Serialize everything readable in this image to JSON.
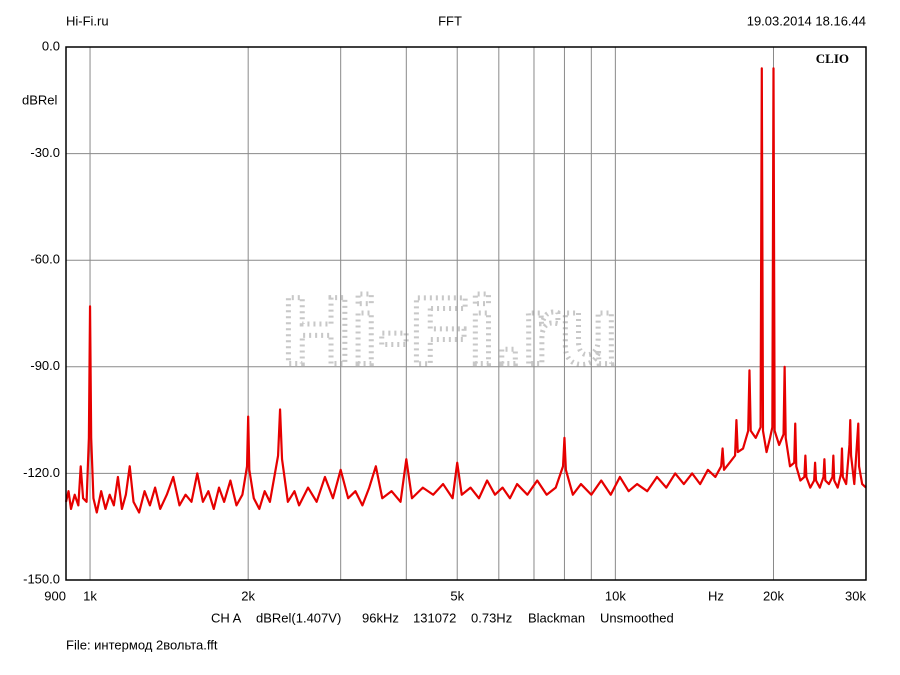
{
  "header": {
    "site": "Hi-Fi.ru",
    "mode": "FFT",
    "timestamp": "19.03.2014 18.16.44"
  },
  "chart_data": {
    "type": "line",
    "brand": "CLIO",
    "ylabel": "dBRel",
    "xlabel": "Hz",
    "log_x": true,
    "grid": true,
    "xlim": [
      900,
      30000
    ],
    "ylim": [
      -150,
      0
    ],
    "xticks": [
      900,
      {
        "value": 1000,
        "label": "1k"
      },
      {
        "value": 2000,
        "label": "2k"
      },
      {
        "value": 5000,
        "label": "5k"
      },
      {
        "value": 10000,
        "label": "10k"
      },
      {
        "value": 20000,
        "label": "20k"
      },
      {
        "value": 30000,
        "label": "30k"
      }
    ],
    "minor_xticks": [
      3000,
      4000,
      6000,
      7000,
      8000,
      9000
    ],
    "yticks": [
      {
        "value": 0,
        "label": "0.0"
      },
      {
        "value": -30,
        "label": "-30.0"
      },
      {
        "value": -60,
        "label": "-60.0"
      },
      {
        "value": -90,
        "label": "-90.0"
      },
      {
        "value": -120,
        "label": "-120.0"
      },
      {
        "value": -150,
        "label": "-150.0"
      }
    ],
    "series": [
      {
        "name": "CH A",
        "color": "#e60000",
        "x": [
          900,
          910,
          920,
          935,
          950,
          960,
          970,
          985,
          995,
          1000,
          1005,
          1015,
          1030,
          1050,
          1070,
          1090,
          1110,
          1130,
          1150,
          1170,
          1190,
          1210,
          1240,
          1270,
          1300,
          1330,
          1360,
          1400,
          1440,
          1480,
          1520,
          1560,
          1600,
          1640,
          1680,
          1720,
          1760,
          1800,
          1850,
          1900,
          1950,
          1990,
          2000,
          2010,
          2050,
          2100,
          2150,
          2200,
          2280,
          2300,
          2320,
          2380,
          2450,
          2500,
          2600,
          2700,
          2800,
          2900,
          3000,
          3100,
          3200,
          3300,
          3400,
          3500,
          3600,
          3750,
          3900,
          4000,
          4100,
          4300,
          4500,
          4700,
          4900,
          5000,
          5100,
          5300,
          5500,
          5700,
          5900,
          6100,
          6300,
          6500,
          6800,
          7100,
          7400,
          7700,
          7950,
          8000,
          8050,
          8300,
          8600,
          9000,
          9400,
          9800,
          10200,
          10600,
          11000,
          11500,
          12000,
          12500,
          13000,
          13500,
          14000,
          14500,
          15000,
          15500,
          15900,
          16000,
          16100,
          16500,
          16900,
          17000,
          17100,
          17500,
          17900,
          18000,
          18100,
          18500,
          18900,
          19000,
          19100,
          19400,
          19700,
          19900,
          20000,
          20100,
          20500,
          20900,
          21000,
          21100,
          21500,
          21900,
          22000,
          22100,
          22500,
          22900,
          23000,
          23100,
          23500,
          23900,
          24000,
          24100,
          24500,
          24900,
          25000,
          25100,
          25500,
          25900,
          26000,
          26100,
          26500,
          26900,
          27000,
          27100,
          27500,
          27900,
          28000,
          28100,
          28500,
          29000,
          29100,
          29500,
          30000
        ],
        "values": [
          -128,
          -125,
          -130,
          -126,
          -129,
          -118,
          -127,
          -128,
          -110,
          -73,
          -110,
          -127,
          -131,
          -125,
          -130,
          -126,
          -129,
          -121,
          -130,
          -126,
          -118,
          -128,
          -131,
          -125,
          -129,
          -124,
          -130,
          -126,
          -121,
          -129,
          -126,
          -128,
          -120,
          -128,
          -125,
          -130,
          -124,
          -128,
          -122,
          -129,
          -126,
          -118,
          -104,
          -119,
          -127,
          -130,
          -125,
          -128,
          -115,
          -102,
          -116,
          -128,
          -125,
          -129,
          -124,
          -128,
          -121,
          -127,
          -119,
          -127,
          -125,
          -129,
          -124,
          -118,
          -127,
          -125,
          -128,
          -116,
          -127,
          -124,
          -126,
          -123,
          -127,
          -117,
          -126,
          -124,
          -127,
          -122,
          -126,
          -124,
          -127,
          -123,
          -126,
          -122,
          -126,
          -124,
          -118,
          -110,
          -119,
          -126,
          -123,
          -126,
          -122,
          -126,
          -121,
          -125,
          -123,
          -125,
          -121,
          -124,
          -120,
          -123,
          -120,
          -123,
          -119,
          -121,
          -118,
          -113,
          -119,
          -117,
          -115,
          -105,
          -114,
          -113,
          -108,
          -91,
          -108,
          -110,
          -107,
          -6,
          -108,
          -114,
          -110,
          -107,
          -6,
          -108,
          -112,
          -109,
          -90,
          -110,
          -118,
          -117,
          -106,
          -118,
          -122,
          -121,
          -115,
          -121,
          -124,
          -122,
          -117,
          -122,
          -124,
          -121,
          -116,
          -122,
          -123,
          -121,
          -115,
          -122,
          -124,
          -120,
          -113,
          -121,
          -123,
          -112,
          -105,
          -115,
          -123,
          -106,
          -118,
          -123,
          -124
        ]
      }
    ]
  },
  "footer": {
    "settings": [
      "CH A",
      "dBRel(1.407V)",
      "96kHz",
      "131072",
      "0.73Hz",
      "Blackman",
      "Unsmoothed"
    ],
    "file": "File: интермод 2вольта.fft"
  }
}
